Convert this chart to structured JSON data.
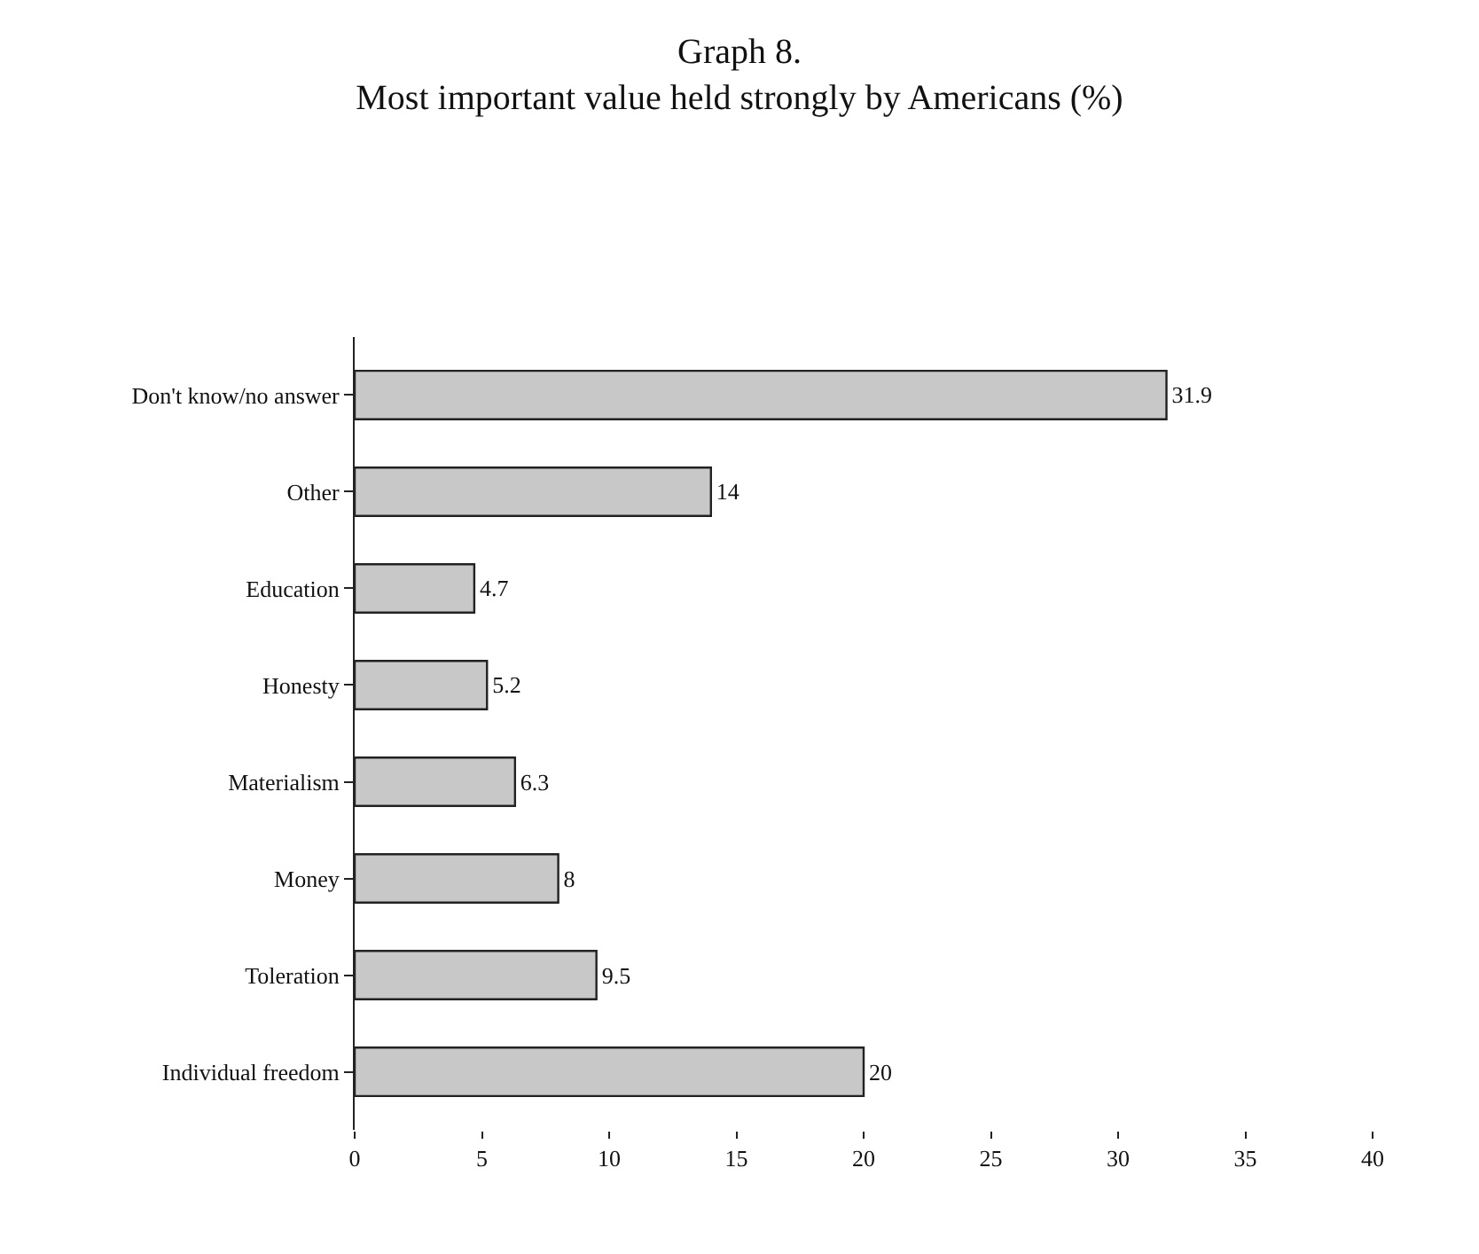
{
  "chart_data": {
    "type": "bar",
    "orientation": "horizontal",
    "title": "Graph 8.",
    "subtitle": "Most important value held strongly by Americans (%)",
    "categories": [
      "Don't know/no answer",
      "Other",
      "Education",
      "Honesty",
      "Materialism",
      "Money",
      "Toleration",
      "Individual freedom"
    ],
    "values": [
      31.9,
      14,
      4.7,
      5.2,
      6.3,
      8,
      9.5,
      20
    ],
    "color": "#c8c8c8",
    "xlim": [
      0,
      40
    ],
    "xticks": [
      0,
      5,
      10,
      15,
      20,
      25,
      30,
      35,
      40
    ],
    "data_labels": true
  }
}
